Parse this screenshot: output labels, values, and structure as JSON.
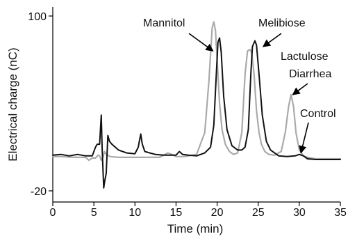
{
  "chart_data": {
    "type": "line",
    "title": "",
    "xlabel": "Time (min)",
    "ylabel": "Electrical charge (nC)",
    "xlim": [
      0,
      35
    ],
    "ylim": [
      -20,
      100
    ],
    "x_ticks": [
      0,
      5,
      10,
      15,
      20,
      25,
      30,
      35
    ],
    "y_ticks": [
      -20,
      100
    ],
    "grid": false,
    "legend": "none",
    "series": [
      {
        "color": "#aaaaaa",
        "x": [
          0,
          1,
          2,
          3,
          4,
          4.4,
          4.8,
          5.2,
          5.5,
          5.7,
          5.9,
          6.1,
          6.3,
          6.5,
          7.0,
          8.0,
          10.0,
          13.0,
          14.0,
          14.5,
          15.0,
          16.0,
          17.5,
          18.5,
          19.0,
          19.4,
          19.6,
          19.8,
          20.0,
          20.3,
          20.6,
          21.0,
          21.5,
          22.0,
          22.5,
          23.0,
          23.4,
          23.7,
          24.0,
          24.2,
          24.5,
          24.8,
          25.1,
          25.4,
          25.8,
          26.3,
          27.0,
          27.8,
          28.3,
          28.7,
          29.0,
          29.3,
          29.6,
          30.0,
          30.5,
          31.0,
          31.5,
          32.0,
          33.0,
          34.0,
          35.0
        ],
        "y": [
          3.5,
          3.5,
          3.2,
          3.0,
          3.0,
          1.0,
          2.5,
          2.5,
          4.5,
          4.0,
          1.0,
          3.0,
          7.0,
          5.0,
          3.5,
          3.0,
          3.0,
          3.0,
          6.0,
          5.0,
          3.5,
          3.5,
          5.0,
          20.0,
          55.0,
          92.0,
          96.0,
          90.0,
          70.0,
          40.0,
          22.0,
          12.0,
          7.0,
          5.0,
          6.0,
          20.0,
          60.0,
          76.0,
          77.0,
          75.0,
          60.0,
          35.0,
          20.0,
          12.0,
          7.0,
          5.0,
          4.5,
          7.0,
          20.0,
          38.0,
          46.0,
          38.0,
          20.0,
          8.0,
          4.0,
          3.0,
          2.5,
          2.0,
          2.0,
          2.0,
          2.0
        ]
      },
      {
        "color": "#111111",
        "x": [
          0,
          1,
          2,
          3,
          4,
          4.8,
          5.2,
          5.4,
          5.7,
          5.9,
          6.0,
          6.2,
          6.3,
          6.5,
          6.7,
          6.9,
          7.2,
          7.6,
          8.0,
          9.0,
          10.0,
          10.4,
          10.7,
          10.9,
          11.2,
          11.8,
          12.5,
          13.5,
          15.0,
          15.4,
          15.8,
          16.5,
          17.5,
          18.5,
          19.2,
          19.6,
          19.9,
          20.1,
          20.3,
          20.5,
          20.8,
          21.2,
          21.8,
          22.5,
          23.0,
          23.4,
          23.8,
          24.1,
          24.3,
          24.6,
          24.8,
          25.1,
          25.5,
          26.0,
          26.5,
          27.5,
          28.5,
          29.5,
          30.0,
          30.5,
          31.0,
          32.0,
          33.0,
          34.0,
          35.0
        ],
        "y": [
          4.5,
          5.0,
          4.0,
          5.0,
          4.0,
          4.0,
          10.0,
          12.0,
          12.0,
          32.0,
          10.0,
          -18.0,
          -14.0,
          -8.0,
          18.0,
          14.0,
          12.0,
          10.0,
          8.0,
          6.0,
          5.5,
          10.0,
          19.0,
          12.0,
          7.0,
          6.0,
          5.0,
          4.5,
          4.5,
          7.0,
          5.0,
          4.5,
          4.0,
          6.0,
          10.0,
          25.0,
          60.0,
          82.0,
          85.0,
          75.0,
          45.0,
          22.0,
          11.0,
          8.0,
          8.0,
          10.0,
          22.0,
          60.0,
          79.0,
          83.0,
          80.0,
          60.0,
          32.0,
          14.0,
          8.0,
          4.0,
          3.5,
          4.0,
          5.0,
          4.0,
          2.0,
          1.5,
          1.5,
          1.5,
          1.5
        ]
      }
    ],
    "annotations": [
      {
        "text": "Mannitol",
        "arrow_to": [
          19.5,
          76
        ]
      },
      {
        "text": "Melibiose",
        "arrow_to": [
          25.6,
          79
        ]
      },
      {
        "text": "Lactulose",
        "arrow_to": null
      },
      {
        "text": "Diarrhea",
        "arrow_to": [
          29.2,
          46
        ]
      },
      {
        "text": "Control",
        "arrow_to": [
          30.2,
          6
        ]
      }
    ]
  }
}
